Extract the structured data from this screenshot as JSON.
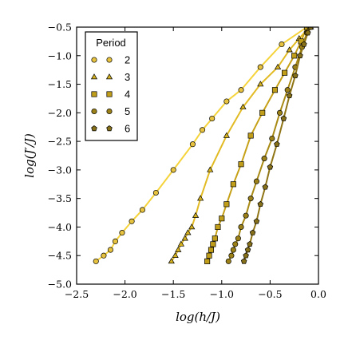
{
  "chart_data": {
    "type": "line",
    "xlabel": "log(h/J)",
    "ylabel": "log(J′/J)",
    "xlim": [
      -2.5,
      0.0
    ],
    "ylim": [
      -5.0,
      -0.5
    ],
    "xticks": [
      -2.5,
      -2.0,
      -1.5,
      -1.0,
      -0.5,
      0.0
    ],
    "yticks": [
      -5.0,
      -4.5,
      -4.0,
      -3.5,
      -3.0,
      -2.5,
      -2.0,
      -1.5,
      -1.0,
      -0.5
    ],
    "xtick_labels": [
      "−2.5",
      "−2.0",
      "−1.5",
      "−1.0",
      "−0.5",
      "0.0"
    ],
    "ytick_labels": [
      "−5.0",
      "−4.5",
      "−4.0",
      "−3.5",
      "−3.0",
      "−2.5",
      "−2.0",
      "−1.5",
      "−1.0",
      "−0.5"
    ],
    "grid": false,
    "legend": {
      "title": "Period",
      "placement": "top-left"
    },
    "series": [
      {
        "name": "2",
        "marker": "circle",
        "marker_color": "#e7c23e",
        "line_color": "#f5d33b",
        "x": [
          -2.3,
          -2.22,
          -2.15,
          -2.1,
          -2.03,
          -1.93,
          -1.82,
          -1.68,
          -1.5,
          -1.3,
          -1.2,
          -1.1,
          -0.95,
          -0.8,
          -0.6,
          -0.38,
          -0.12
        ],
        "y": [
          -4.6,
          -4.5,
          -4.4,
          -4.25,
          -4.1,
          -3.9,
          -3.7,
          -3.4,
          -3.0,
          -2.55,
          -2.3,
          -2.1,
          -1.8,
          -1.6,
          -1.2,
          -0.8,
          -0.5
        ]
      },
      {
        "name": "3",
        "marker": "triangle",
        "marker_color": "#d6b31f",
        "line_color": "#e2bb24",
        "x": [
          -1.52,
          -1.48,
          -1.45,
          -1.42,
          -1.38,
          -1.35,
          -1.31,
          -1.27,
          -1.22,
          -1.12,
          -0.95,
          -0.78,
          -0.6,
          -0.42,
          -0.3,
          -0.2,
          -0.12,
          -0.08
        ],
        "y": [
          -4.6,
          -4.5,
          -4.4,
          -4.3,
          -4.2,
          -4.1,
          -4.0,
          -3.8,
          -3.5,
          -3.0,
          -2.4,
          -1.9,
          -1.5,
          -1.2,
          -0.9,
          -0.7,
          -0.55,
          -0.5
        ]
      },
      {
        "name": "4",
        "marker": "square",
        "marker_color": "#c09e1a",
        "line_color": "#c6a117",
        "x": [
          -1.15,
          -1.13,
          -1.11,
          -1.09,
          -1.07,
          -1.04,
          -1.0,
          -0.95,
          -0.88,
          -0.8,
          -0.7,
          -0.58,
          -0.45,
          -0.35,
          -0.25,
          -0.18,
          -0.12
        ],
        "y": [
          -4.6,
          -4.5,
          -4.4,
          -4.3,
          -4.2,
          -4.0,
          -3.85,
          -3.6,
          -3.25,
          -2.9,
          -2.4,
          -2.0,
          -1.6,
          -1.3,
          -1.0,
          -0.75,
          -0.5
        ]
      },
      {
        "name": "5",
        "marker": "circle",
        "marker_color": "#9b8117",
        "line_color": "#a88a14",
        "x": [
          -0.93,
          -0.9,
          -0.88,
          -0.86,
          -0.83,
          -0.8,
          -0.75,
          -0.7,
          -0.64,
          -0.56,
          -0.48,
          -0.4,
          -0.32,
          -0.24,
          -0.17,
          -0.12,
          -0.09
        ],
        "y": [
          -4.6,
          -4.5,
          -4.4,
          -4.3,
          -4.2,
          -4.0,
          -3.8,
          -3.5,
          -3.2,
          -2.8,
          -2.45,
          -2.0,
          -1.6,
          -1.2,
          -0.85,
          -0.6,
          -0.5
        ]
      },
      {
        "name": "6",
        "marker": "pentagon",
        "marker_color": "#86701a",
        "line_color": "#8f7516",
        "x": [
          -0.77,
          -0.75,
          -0.73,
          -0.71,
          -0.68,
          -0.64,
          -0.6,
          -0.55,
          -0.5,
          -0.43,
          -0.36,
          -0.3,
          -0.24,
          -0.19,
          -0.15,
          -0.11,
          -0.08
        ],
        "y": [
          -4.6,
          -4.5,
          -4.4,
          -4.3,
          -4.1,
          -3.9,
          -3.6,
          -3.3,
          -2.95,
          -2.55,
          -2.1,
          -1.7,
          -1.35,
          -1.0,
          -0.8,
          -0.6,
          -0.5
        ]
      }
    ]
  }
}
